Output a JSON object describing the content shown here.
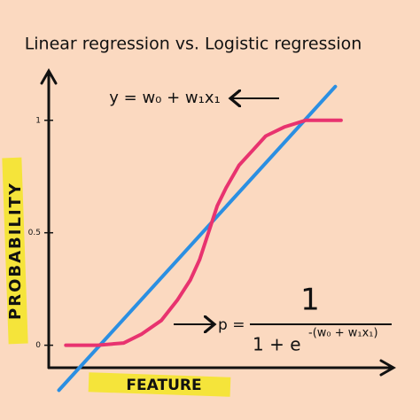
{
  "chart_data": {
    "type": "line",
    "title": "Linear regression  vs.  Logistic regression",
    "y_label": "PROBABILITY",
    "x_label": "FEATURE",
    "linear_formula": "y = w₀ + w₁x₁",
    "logistic_formula_lhs": "p =",
    "logistic_formula_numerator": "1",
    "logistic_formula_denominator": "1 + e",
    "logistic_formula_exponent": "-(w₀ + w₁x₁)",
    "xlim": [
      0,
      10
    ],
    "ylim": [
      -0.1,
      1.2
    ],
    "yticks": [
      0,
      0.5,
      1
    ],
    "series": [
      {
        "color": "#2b8fe2",
        "x": [
          0.3,
          8.4
        ],
        "values": [
          -0.2,
          1.15
        ]
      },
      {
        "color": "#e8336f",
        "x": [
          0.5,
          1.43,
          2.2,
          2.73,
          3.3,
          3.77,
          4.15,
          4.42,
          4.68,
          4.94,
          5.2,
          5.58,
          6.0,
          6.36,
          6.9,
          7.53,
          8.57
        ],
        "values": [
          0,
          0,
          0.01,
          0.05,
          0.11,
          0.2,
          0.29,
          0.38,
          0.5,
          0.62,
          0.7,
          0.8,
          0.87,
          0.93,
          0.97,
          1,
          1
        ]
      }
    ]
  }
}
